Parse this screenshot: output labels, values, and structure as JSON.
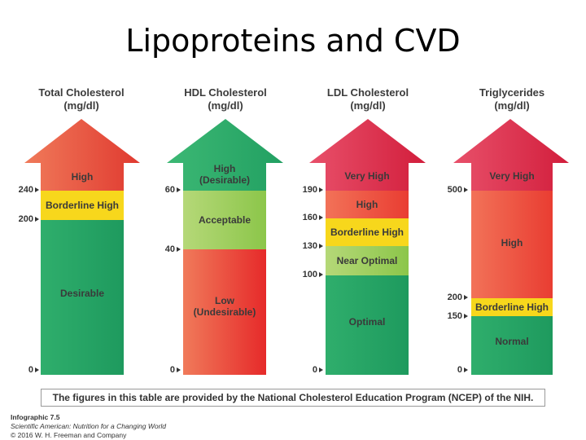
{
  "title": "Lipoproteins and CVD",
  "columns": [
    {
      "header_line1": "Total Cholesterol",
      "header_line2": "(mg/dl)",
      "segments": [
        {
          "label": "High",
          "color": "#e84a3c"
        },
        {
          "label": "Borderline High",
          "color": "#f7d71c"
        },
        {
          "label": "Desirable",
          "color": "#2aa868"
        }
      ],
      "ticks": [
        "240",
        "200",
        "0"
      ]
    },
    {
      "header_line1": "HDL Cholesterol",
      "header_line2": "(mg/dl)",
      "segments": [
        {
          "label": "High\n(Desirable)",
          "color": "#2aa868"
        },
        {
          "label": "Acceptable",
          "color": "#9ccb55"
        },
        {
          "label": "Low\n(Undesirable)",
          "color": "#ea4a3b"
        }
      ],
      "ticks": [
        "60",
        "40",
        "0"
      ]
    },
    {
      "header_line1": "LDL Cholesterol",
      "header_line2": "(mg/dl)",
      "segments": [
        {
          "label": "Very High",
          "color": "#e0324a"
        },
        {
          "label": "High",
          "color": "#ee5139"
        },
        {
          "label": "Borderline High",
          "color": "#f7d71c"
        },
        {
          "label": "Near Optimal",
          "color": "#9ccb55"
        },
        {
          "label": "Optimal",
          "color": "#2aa868"
        }
      ],
      "ticks": [
        "190",
        "160",
        "130",
        "100",
        "0"
      ]
    },
    {
      "header_line1": "Triglycerides",
      "header_line2": "(mg/dl)",
      "segments": [
        {
          "label": "Very High",
          "color": "#e0324a"
        },
        {
          "label": "High",
          "color": "#ee5139"
        },
        {
          "label": "Borderline High",
          "color": "#f7d71c"
        },
        {
          "label": "Normal",
          "color": "#2aa868"
        }
      ],
      "ticks": [
        "500",
        "200",
        "150",
        "0"
      ]
    }
  ],
  "footer_note": "The figures in this table are provided by the National Cholesterol Education Program (NCEP) of the NIH.",
  "credit": {
    "line1": "Infographic 7.5",
    "line2": "Scientific American: Nutrition for a Changing World",
    "line3": "© 2016 W. H. Freeman and Company"
  }
}
